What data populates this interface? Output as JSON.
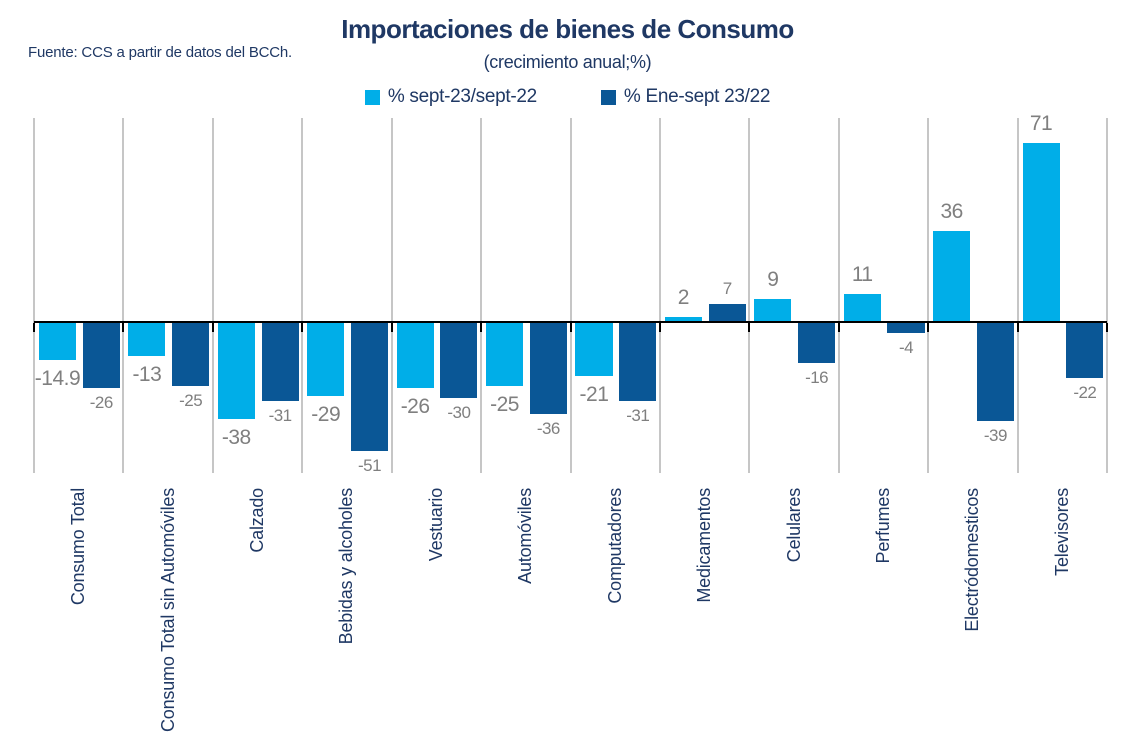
{
  "header": {
    "source_note": "Fuente: CCS a partir de datos del BCCh.",
    "title": "Importaciones de bienes de Consumo",
    "subtitle": "(crecimiento anual;%)"
  },
  "colors": {
    "series1": "#00AEE8",
    "series2": "#0A5796",
    "heading_text": "#1F3864",
    "value_label_text": "#7F7F7F",
    "gridline": "#C6C6C6",
    "axis_line": "#000000"
  },
  "chart_data": {
    "type": "bar",
    "title": "Importaciones de bienes de Consumo",
    "subtitle": "(crecimiento anual;%)",
    "source": "Fuente: CCS a partir de datos del BCCh.",
    "categories": [
      "Consumo Total",
      "Consumo Total sin Automóviles",
      "Calzado",
      "Bebidas y alcoholes",
      "Vestuario",
      "Automóviles",
      "Computadores",
      "Medicamentos",
      "Celulares",
      "Perfumes",
      "Electródomesticos",
      "Televisores"
    ],
    "series": [
      {
        "name": "% sept-23/sept-22",
        "color": "#00AEE8",
        "values": [
          -14.9,
          -13,
          -38,
          -29,
          -26,
          -25,
          -21,
          2,
          9,
          11,
          36,
          71
        ]
      },
      {
        "name": "% Ene-sept 23/22",
        "color": "#0A5796",
        "values": [
          -26,
          -25,
          -31,
          -51,
          -30,
          -36,
          -31,
          7,
          -16,
          -4,
          -39,
          -22
        ]
      }
    ],
    "ylim": [
      -60,
      81
    ],
    "grid": "vertical-category-separators",
    "legend_position": "top",
    "value_labels": "outside-end",
    "category_label_rotation_deg": 90
  }
}
